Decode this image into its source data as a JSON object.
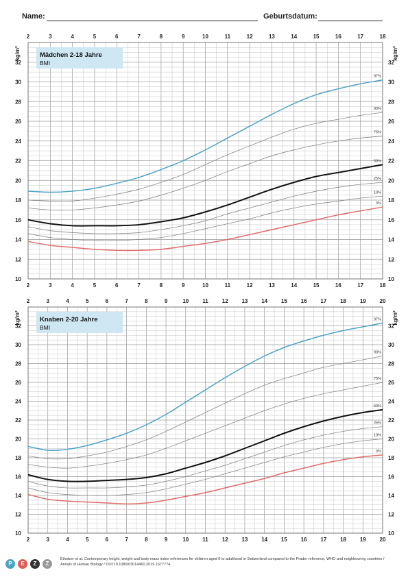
{
  "header": {
    "name_label": "Name:",
    "birthdate_label": "Geburtsdatum:"
  },
  "chart_data": [
    {
      "type": "line",
      "title": "Mädchen 2-18 Jahre",
      "subtitle": "BMI",
      "ylabel": "kg/m²",
      "xlim": [
        2,
        18
      ],
      "ylim": [
        10,
        34
      ],
      "x_ticks": [
        2,
        3,
        4,
        5,
        6,
        7,
        8,
        9,
        10,
        11,
        12,
        13,
        14,
        15,
        16,
        17,
        18
      ],
      "y_ticks": [
        10,
        12,
        14,
        16,
        18,
        20,
        22,
        24,
        26,
        28,
        30,
        32
      ],
      "grid": true,
      "x": [
        2,
        3,
        4,
        5,
        6,
        7,
        8,
        9,
        10,
        11,
        12,
        13,
        14,
        15,
        16,
        17,
        18
      ],
      "series": [
        {
          "name": "97%",
          "color": "#4ba3c8",
          "width": 1.5,
          "values": [
            18.9,
            18.8,
            18.9,
            19.2,
            19.7,
            20.3,
            21.1,
            22.0,
            23.1,
            24.3,
            25.5,
            26.7,
            27.8,
            28.7,
            29.3,
            29.8,
            30.2
          ]
        },
        {
          "name": "90%",
          "color": "#888888",
          "width": 0.8,
          "values": [
            18.0,
            17.9,
            17.9,
            18.2,
            18.6,
            19.1,
            19.8,
            20.6,
            21.6,
            22.6,
            23.5,
            24.4,
            25.2,
            25.8,
            26.2,
            26.6,
            26.9
          ]
        },
        {
          "name": "75%",
          "color": "#888888",
          "width": 0.8,
          "values": [
            17.2,
            17.0,
            17.0,
            17.2,
            17.5,
            17.9,
            18.5,
            19.2,
            20.0,
            20.9,
            21.7,
            22.5,
            23.1,
            23.6,
            24.0,
            24.3,
            24.5
          ]
        },
        {
          "name": "50%",
          "color": "#111111",
          "width": 2.0,
          "values": [
            16.0,
            15.6,
            15.4,
            15.4,
            15.4,
            15.5,
            15.8,
            16.2,
            16.8,
            17.5,
            18.3,
            19.1,
            19.8,
            20.4,
            20.8,
            21.2,
            21.6
          ]
        },
        {
          "name": "25%",
          "color": "#888888",
          "width": 0.8,
          "values": [
            15.3,
            14.9,
            14.7,
            14.6,
            14.6,
            14.7,
            15.0,
            15.4,
            15.9,
            16.6,
            17.2,
            17.8,
            18.4,
            18.9,
            19.3,
            19.6,
            19.8
          ]
        },
        {
          "name": "10%",
          "color": "#888888",
          "width": 0.8,
          "values": [
            14.6,
            14.2,
            14.0,
            13.9,
            13.9,
            14.0,
            14.2,
            14.6,
            15.1,
            15.6,
            16.1,
            16.7,
            17.2,
            17.6,
            17.9,
            18.2,
            18.4
          ]
        },
        {
          "name": "3%",
          "color": "#e06b6b",
          "width": 1.5,
          "values": [
            13.8,
            13.4,
            13.2,
            13.0,
            12.9,
            12.9,
            13.0,
            13.3,
            13.6,
            14.0,
            14.5,
            15.0,
            15.5,
            16.0,
            16.5,
            16.9,
            17.3
          ]
        }
      ]
    },
    {
      "type": "line",
      "title": "Knaben 2-20 Jahre",
      "subtitle": "BMI",
      "ylabel": "kg/m²",
      "xlim": [
        2,
        20
      ],
      "ylim": [
        10,
        34
      ],
      "x_ticks": [
        2,
        3,
        4,
        5,
        6,
        7,
        8,
        9,
        10,
        11,
        12,
        13,
        14,
        15,
        16,
        17,
        18,
        19,
        20
      ],
      "y_ticks": [
        10,
        12,
        14,
        16,
        18,
        20,
        22,
        24,
        26,
        28,
        30,
        32
      ],
      "grid": true,
      "x": [
        2,
        3,
        4,
        5,
        6,
        7,
        8,
        9,
        10,
        11,
        12,
        13,
        14,
        15,
        16,
        17,
        18,
        19,
        20
      ],
      "series": [
        {
          "name": "97%",
          "color": "#4ba3c8",
          "width": 1.5,
          "values": [
            19.2,
            18.8,
            18.9,
            19.3,
            19.9,
            20.6,
            21.5,
            22.6,
            23.9,
            25.2,
            26.5,
            27.7,
            28.8,
            29.7,
            30.4,
            31.0,
            31.5,
            31.9,
            32.3
          ]
        },
        {
          "name": "90%",
          "color": "#888888",
          "width": 0.8,
          "values": [
            18.2,
            17.9,
            17.9,
            18.2,
            18.6,
            19.2,
            19.9,
            20.8,
            21.8,
            22.8,
            23.8,
            24.8,
            25.7,
            26.4,
            27.0,
            27.6,
            28.0,
            28.4,
            28.8
          ]
        },
        {
          "name": "75%",
          "color": "#888888",
          "width": 0.8,
          "values": [
            17.3,
            17.0,
            16.9,
            17.1,
            17.4,
            17.8,
            18.3,
            19.0,
            19.8,
            20.6,
            21.4,
            22.2,
            23.0,
            23.7,
            24.3,
            24.8,
            25.2,
            25.6,
            26.0
          ]
        },
        {
          "name": "50%",
          "color": "#111111",
          "width": 2.0,
          "values": [
            16.2,
            15.7,
            15.5,
            15.5,
            15.6,
            15.7,
            15.9,
            16.3,
            16.9,
            17.5,
            18.2,
            19.0,
            19.8,
            20.6,
            21.3,
            21.9,
            22.4,
            22.8,
            23.1
          ]
        },
        {
          "name": "25%",
          "color": "#888888",
          "width": 0.8,
          "values": [
            15.5,
            15.0,
            14.8,
            14.8,
            14.8,
            14.9,
            15.1,
            15.5,
            16.0,
            16.6,
            17.2,
            17.9,
            18.6,
            19.3,
            19.9,
            20.4,
            20.8,
            21.1,
            21.3
          ]
        },
        {
          "name": "10%",
          "color": "#888888",
          "width": 0.8,
          "values": [
            14.8,
            14.3,
            14.1,
            14.0,
            14.0,
            14.1,
            14.3,
            14.7,
            15.2,
            15.7,
            16.3,
            16.9,
            17.5,
            18.1,
            18.6,
            19.1,
            19.5,
            19.8,
            20.0
          ]
        },
        {
          "name": "3%",
          "color": "#e06b6b",
          "width": 1.5,
          "values": [
            14.1,
            13.6,
            13.4,
            13.3,
            13.2,
            13.1,
            13.2,
            13.5,
            13.9,
            14.3,
            14.8,
            15.3,
            15.8,
            16.4,
            16.9,
            17.4,
            17.8,
            18.1,
            18.3
          ]
        }
      ]
    }
  ],
  "footer": {
    "citation": "Eiholzer et al. Contemporary height, weight and body mass index references for children aged 0 to adulthood in Switzerland compared to the Prader reference, WHO and neighbouring countries / Annals of Human Biology / DOI:10.1080/03014460.2019.1677774",
    "logo_letters": [
      "P",
      "E",
      "Z",
      "Z"
    ],
    "logo_colors": [
      "#4ba3c8",
      "#e05a5a",
      "#333333",
      "#999999"
    ]
  }
}
